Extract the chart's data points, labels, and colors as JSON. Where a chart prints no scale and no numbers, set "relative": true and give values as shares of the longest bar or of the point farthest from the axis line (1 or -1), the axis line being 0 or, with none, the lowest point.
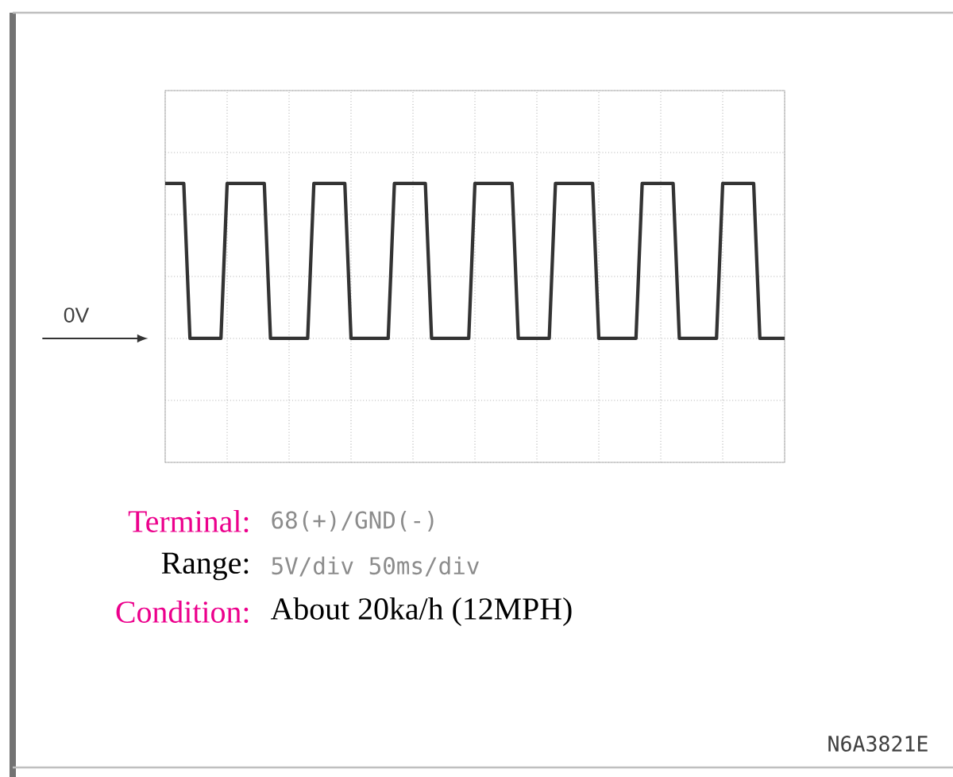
{
  "chart_data": {
    "type": "line",
    "relative": true,
    "categories": [
      null,
      null,
      null,
      null,
      null,
      null,
      null,
      null,
      null,
      null,
      null,
      null,
      null,
      null,
      null,
      null,
      null,
      null,
      null,
      null,
      null,
      null,
      null,
      null,
      null,
      null,
      null,
      null,
      null,
      null,
      null,
      null,
      null,
      null,
      null,
      null,
      null,
      null,
      null,
      null,
      null,
      null,
      null,
      null,
      null,
      null,
      null,
      null,
      null,
      null,
      null,
      null,
      null,
      null,
      null,
      null,
      null,
      null,
      null,
      null,
      null,
      null,
      null,
      null,
      null,
      null,
      null,
      null,
      null,
      null,
      null,
      null,
      null,
      null,
      null,
      null,
      null,
      null,
      null,
      null,
      null,
      null,
      null,
      null,
      null,
      null,
      null,
      null,
      null,
      null,
      null,
      null,
      null,
      null,
      null,
      null,
      null,
      null,
      null,
      null,
      null
    ],
    "series": [
      {
        "color": "#333333",
        "values": [
          1,
          1,
          1,
          1,
          0,
          0,
          0,
          0,
          0,
          0,
          1,
          1,
          1,
          1,
          1,
          1,
          1,
          0,
          0,
          0,
          0,
          0,
          0,
          0,
          1,
          1,
          1,
          1,
          1,
          1,
          0,
          0,
          0,
          0,
          0,
          0,
          0,
          1,
          1,
          1,
          1,
          1,
          1,
          0,
          0,
          0,
          0,
          0,
          0,
          0,
          1,
          1,
          1,
          1,
          1,
          1,
          1,
          0,
          0,
          0,
          0,
          0,
          0,
          1,
          1,
          1,
          1,
          1,
          1,
          1,
          0,
          0,
          0,
          0,
          0,
          0,
          0,
          1,
          1,
          1,
          1,
          1,
          1,
          0,
          0,
          0,
          0,
          0,
          0,
          0,
          1,
          1,
          1,
          1,
          1,
          1,
          0,
          0,
          0,
          0,
          0
        ]
      }
    ],
    "grid": true,
    "line_style": "solid",
    "marker": "none",
    "annotations": [
      "0V",
      "Terminal:",
      "68(+)/GND(-)",
      "Range:",
      "5V/div 50ms/div",
      "Condition:",
      "About 20ka/h (12MPH)",
      "N6A3821E"
    ]
  }
}
